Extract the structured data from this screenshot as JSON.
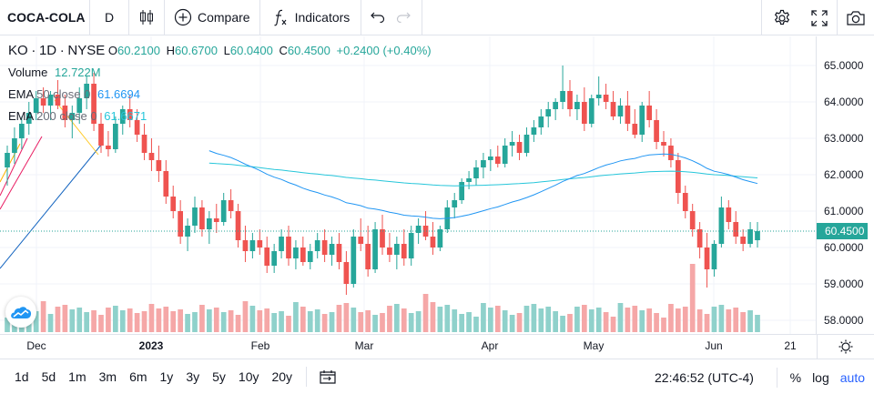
{
  "toolbar": {
    "symbol": "COCA-COLA",
    "interval": "D",
    "compare_label": "Compare",
    "indicators_label": "Indicators"
  },
  "legend": {
    "symbol": "KO",
    "interval": "1D",
    "exchange": "NYSE",
    "o_key": "O",
    "open": "60.2100",
    "h_key": "H",
    "high": "60.6700",
    "l_key": "L",
    "low": "60.0400",
    "c_key": "C",
    "close": "60.4500",
    "change": "+0.2400 (+0.40%)",
    "volume_label": "Volume",
    "volume_value": "12.722M",
    "ema50_label": "EMA",
    "ema50_params": "50 close 0",
    "ema50_value": "61.6694",
    "ema200_label": "EMA",
    "ema200_params": "200 close 0",
    "ema200_value": "61.6671"
  },
  "price_axis": {
    "labels": [
      "65.0000",
      "64.0000",
      "63.0000",
      "62.0000",
      "61.0000",
      "60.0000",
      "59.0000",
      "58.0000"
    ],
    "last_price": "60.4500"
  },
  "time_axis": {
    "labels": [
      {
        "text": "Dec",
        "bold": false
      },
      {
        "text": "2023",
        "bold": true
      },
      {
        "text": "Feb",
        "bold": false
      },
      {
        "text": "Mar",
        "bold": false
      },
      {
        "text": "Apr",
        "bold": false
      },
      {
        "text": "May",
        "bold": false
      },
      {
        "text": "Jun",
        "bold": false
      },
      {
        "text": "21",
        "bold": false
      }
    ]
  },
  "bottom": {
    "ranges": [
      "1d",
      "5d",
      "1m",
      "3m",
      "6m",
      "1y",
      "3y",
      "5y",
      "10y",
      "20y"
    ],
    "clock": "22:46:52 (UTC-4)",
    "percent_label": "%",
    "log_label": "log",
    "auto_label": "auto"
  },
  "colors": {
    "up": "#26a69a",
    "down": "#ef5350",
    "vol_up": "#8fd1cb",
    "vol_down": "#f5a7a7",
    "ema50": "#2196f3",
    "ema200": "#26c6da",
    "accent": "#2962ff"
  },
  "chart_data": {
    "type": "candlestick",
    "price_range": [
      57.6,
      65.5
    ],
    "candles_ohlc": [
      [
        62.2,
        62.8,
        61.7,
        62.6
      ],
      [
        62.6,
        63.3,
        62.3,
        63.0
      ],
      [
        63.0,
        63.6,
        62.7,
        63.4
      ],
      [
        63.4,
        64.0,
        63.1,
        63.7
      ],
      [
        63.7,
        64.3,
        63.5,
        64.1
      ],
      [
        64.1,
        64.4,
        63.7,
        63.9
      ],
      [
        63.9,
        64.3,
        63.5,
        64.2
      ],
      [
        64.2,
        64.6,
        63.8,
        63.9
      ],
      [
        63.9,
        64.2,
        63.3,
        63.5
      ],
      [
        63.5,
        63.9,
        63.0,
        63.7
      ],
      [
        63.7,
        64.4,
        63.4,
        64.1
      ],
      [
        64.1,
        64.7,
        63.8,
        64.5
      ],
      [
        64.5,
        64.8,
        63.2,
        63.4
      ],
      [
        63.4,
        63.7,
        62.6,
        62.8
      ],
      [
        62.8,
        63.2,
        62.5,
        62.7
      ],
      [
        62.7,
        63.6,
        62.6,
        63.4
      ],
      [
        63.4,
        63.9,
        63.1,
        63.8
      ],
      [
        63.8,
        64.2,
        63.3,
        63.5
      ],
      [
        63.5,
        63.8,
        62.9,
        63.1
      ],
      [
        63.1,
        63.4,
        62.4,
        62.6
      ],
      [
        62.6,
        63.0,
        62.1,
        62.4
      ],
      [
        62.4,
        62.8,
        61.8,
        62.1
      ],
      [
        62.1,
        62.4,
        61.2,
        61.4
      ],
      [
        61.4,
        61.7,
        60.8,
        61.0
      ],
      [
        61.0,
        61.3,
        60.1,
        60.3
      ],
      [
        60.3,
        60.8,
        59.9,
        60.6
      ],
      [
        60.6,
        61.4,
        60.4,
        61.1
      ],
      [
        61.1,
        61.3,
        60.3,
        60.5
      ],
      [
        60.5,
        61.0,
        60.1,
        60.8
      ],
      [
        60.8,
        61.2,
        60.4,
        60.7
      ],
      [
        60.7,
        61.5,
        60.6,
        61.3
      ],
      [
        61.3,
        61.6,
        60.8,
        61.0
      ],
      [
        61.0,
        61.2,
        60.0,
        60.2
      ],
      [
        60.2,
        60.6,
        59.6,
        59.9
      ],
      [
        59.9,
        60.4,
        59.7,
        60.2
      ],
      [
        60.2,
        60.5,
        59.8,
        60.0
      ],
      [
        60.0,
        60.3,
        59.3,
        59.5
      ],
      [
        59.5,
        60.1,
        59.3,
        59.9
      ],
      [
        59.9,
        60.5,
        59.7,
        60.3
      ],
      [
        60.3,
        60.6,
        59.5,
        59.7
      ],
      [
        59.7,
        60.2,
        59.4,
        60.0
      ],
      [
        60.0,
        60.3,
        59.5,
        59.6
      ],
      [
        59.6,
        60.1,
        59.4,
        59.9
      ],
      [
        59.9,
        60.4,
        59.7,
        60.2
      ],
      [
        60.2,
        60.5,
        59.6,
        59.8
      ],
      [
        59.8,
        60.3,
        59.5,
        60.1
      ],
      [
        60.1,
        60.4,
        59.4,
        59.6
      ],
      [
        59.6,
        59.9,
        58.7,
        59.0
      ],
      [
        59.0,
        60.5,
        58.9,
        60.3
      ],
      [
        60.3,
        60.8,
        59.9,
        60.1
      ],
      [
        60.1,
        60.6,
        59.2,
        59.4
      ],
      [
        59.4,
        60.7,
        59.3,
        60.5
      ],
      [
        60.5,
        60.9,
        59.8,
        60.0
      ],
      [
        60.0,
        60.4,
        59.6,
        59.8
      ],
      [
        59.8,
        60.3,
        59.4,
        60.1
      ],
      [
        60.1,
        60.5,
        59.5,
        59.7
      ],
      [
        59.7,
        60.6,
        59.5,
        60.4
      ],
      [
        60.4,
        60.8,
        60.1,
        60.6
      ],
      [
        60.6,
        61.0,
        60.2,
        60.3
      ],
      [
        60.3,
        60.7,
        59.8,
        60.0
      ],
      [
        60.0,
        60.6,
        59.9,
        60.5
      ],
      [
        60.5,
        61.3,
        60.4,
        61.1
      ],
      [
        61.1,
        61.5,
        60.8,
        61.3
      ],
      [
        61.3,
        61.9,
        61.2,
        61.8
      ],
      [
        61.8,
        62.1,
        61.6,
        61.9
      ],
      [
        61.9,
        62.4,
        61.7,
        62.2
      ],
      [
        62.2,
        62.6,
        61.9,
        62.4
      ],
      [
        62.4,
        62.7,
        62.1,
        62.5
      ],
      [
        62.5,
        62.8,
        62.2,
        62.3
      ],
      [
        62.3,
        63.0,
        62.2,
        62.8
      ],
      [
        62.8,
        63.2,
        62.5,
        62.9
      ],
      [
        62.9,
        63.1,
        62.4,
        62.6
      ],
      [
        62.6,
        63.3,
        62.5,
        63.1
      ],
      [
        63.1,
        63.5,
        62.9,
        63.3
      ],
      [
        63.3,
        63.8,
        63.1,
        63.6
      ],
      [
        63.6,
        64.0,
        63.3,
        63.8
      ],
      [
        63.8,
        64.1,
        63.5,
        64.0
      ],
      [
        64.0,
        65.0,
        63.8,
        64.3
      ],
      [
        64.3,
        64.6,
        63.6,
        63.8
      ],
      [
        63.8,
        64.2,
        63.5,
        64.0
      ],
      [
        64.0,
        64.4,
        63.2,
        63.4
      ],
      [
        63.4,
        64.2,
        63.3,
        64.1
      ],
      [
        64.1,
        64.7,
        63.9,
        64.2
      ],
      [
        64.2,
        64.5,
        63.8,
        64.0
      ],
      [
        64.0,
        64.3,
        63.5,
        63.6
      ],
      [
        63.6,
        64.1,
        63.4,
        63.9
      ],
      [
        63.9,
        64.3,
        63.2,
        63.4
      ],
      [
        63.4,
        63.8,
        63.0,
        63.1
      ],
      [
        63.1,
        64.0,
        62.9,
        63.9
      ],
      [
        63.9,
        64.3,
        63.3,
        63.5
      ],
      [
        63.5,
        63.8,
        62.7,
        62.9
      ],
      [
        62.9,
        63.2,
        62.5,
        62.8
      ],
      [
        62.8,
        63.0,
        62.2,
        62.4
      ],
      [
        62.4,
        62.6,
        61.2,
        61.5
      ],
      [
        61.5,
        61.7,
        60.8,
        61.0
      ],
      [
        61.0,
        61.2,
        60.3,
        60.5
      ],
      [
        60.5,
        60.7,
        59.7,
        60.0
      ],
      [
        60.0,
        60.4,
        58.9,
        59.4
      ],
      [
        59.4,
        60.2,
        59.2,
        60.1
      ],
      [
        60.1,
        61.4,
        60.0,
        61.1
      ],
      [
        61.1,
        61.3,
        60.5,
        60.7
      ],
      [
        60.7,
        61.0,
        60.1,
        60.3
      ],
      [
        60.3,
        60.5,
        59.9,
        60.1
      ],
      [
        60.1,
        60.7,
        60.0,
        60.5
      ],
      [
        60.2,
        60.7,
        60.0,
        60.45
      ]
    ]
  }
}
